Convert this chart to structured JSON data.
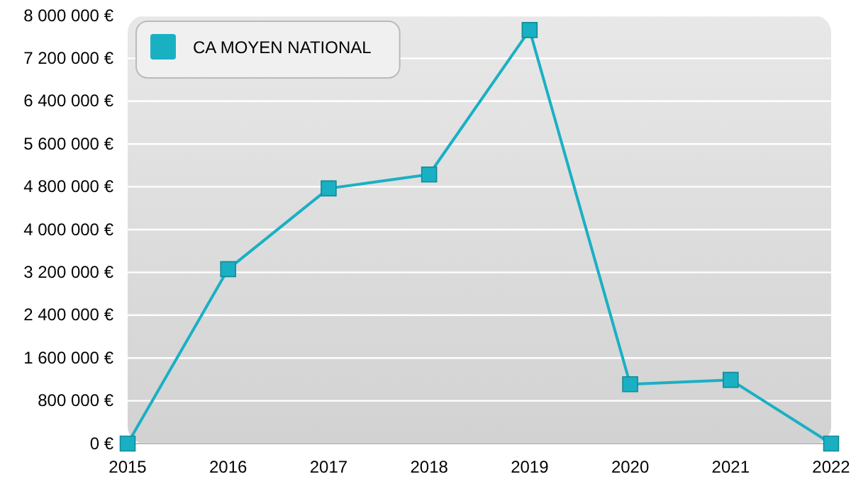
{
  "chart_data": {
    "type": "line",
    "x": [
      2015,
      2016,
      2017,
      2018,
      2019,
      2020,
      2021,
      2022
    ],
    "series": [
      {
        "name": "CA MOYEN NATIONAL",
        "color": "#1ab0c4",
        "values": [
          0,
          3260000,
          4770000,
          5030000,
          7730000,
          1110000,
          1190000,
          0
        ]
      }
    ],
    "xlim": [
      2015,
      2022
    ],
    "xticks": [
      2015,
      2016,
      2017,
      2018,
      2019,
      2020,
      2021,
      2022
    ],
    "ylim": [
      0,
      8000000
    ],
    "yticks": [
      {
        "value": 0,
        "label": "0 €"
      },
      {
        "value": 800000,
        "label": "800 000 €"
      },
      {
        "value": 1600000,
        "label": "1 600 000 €"
      },
      {
        "value": 2400000,
        "label": "2 400 000 €"
      },
      {
        "value": 3200000,
        "label": "3 200 000 €"
      },
      {
        "value": 4000000,
        "label": "4 000 000 €"
      },
      {
        "value": 4800000,
        "label": "4 800 000 €"
      },
      {
        "value": 5600000,
        "label": "5 600 000 €"
      },
      {
        "value": 6400000,
        "label": "6 400 000 €"
      },
      {
        "value": 7200000,
        "label": "7 200 000 €"
      },
      {
        "value": 8000000,
        "label": "8 000 000 €"
      }
    ],
    "grid": "y",
    "legend": "top left",
    "marker": "square",
    "line_style": "solid"
  }
}
